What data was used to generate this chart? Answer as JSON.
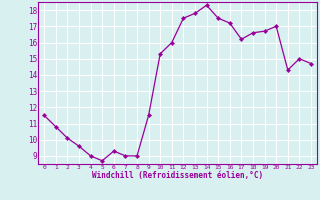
{
  "x": [
    0,
    1,
    2,
    3,
    4,
    5,
    6,
    7,
    8,
    9,
    10,
    11,
    12,
    13,
    14,
    15,
    16,
    17,
    18,
    19,
    20,
    21,
    22,
    23
  ],
  "y": [
    11.5,
    10.8,
    10.1,
    9.6,
    9.0,
    8.7,
    9.3,
    9.0,
    9.0,
    11.5,
    15.3,
    16.0,
    17.5,
    17.8,
    18.3,
    17.5,
    17.2,
    16.2,
    16.6,
    16.7,
    17.0,
    14.3,
    15.0,
    14.7
  ],
  "line_color": "#990099",
  "marker": "D",
  "marker_size": 2.2,
  "bg_color": "#d8f0f0",
  "grid_color": "#b8d8d8",
  "xlabel": "Windchill (Refroidissement éolien,°C)",
  "xlabel_color": "#990099",
  "tick_color": "#990099",
  "xlim": [
    -0.5,
    23.5
  ],
  "ylim": [
    8.5,
    18.5
  ],
  "yticks": [
    9,
    10,
    11,
    12,
    13,
    14,
    15,
    16,
    17,
    18
  ],
  "xticks": [
    0,
    1,
    2,
    3,
    4,
    5,
    6,
    7,
    8,
    9,
    10,
    11,
    12,
    13,
    14,
    15,
    16,
    17,
    18,
    19,
    20,
    21,
    22,
    23
  ],
  "spine_color": "#990099"
}
